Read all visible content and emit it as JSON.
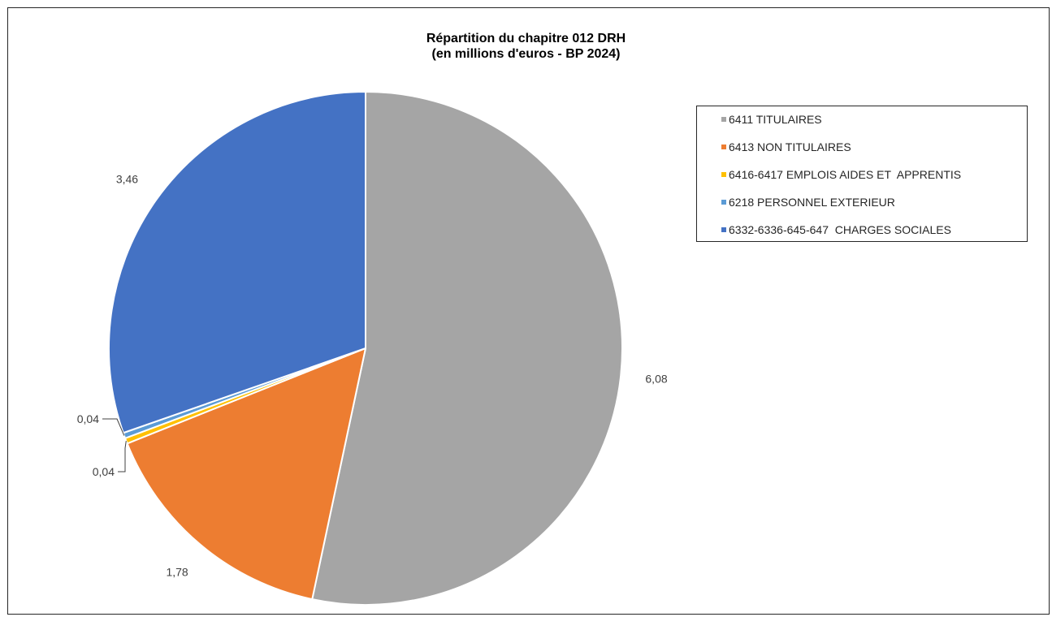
{
  "chart_data": {
    "type": "pie",
    "title_lines": [
      "Répartition du chapitre 012 DRH",
      "(en millions d'euros - BP 2024)"
    ],
    "categories": [
      "6411 TITULAIRES",
      "6413 NON TITULAIRES",
      "6416-6417 EMPLOIS AIDES ET  APPRENTIS",
      "6218 PERSONNEL EXTERIEUR",
      "6332-6336-645-647  CHARGES SOCIALES"
    ],
    "values": [
      6.08,
      1.78,
      0.04,
      0.04,
      3.46
    ],
    "value_labels": [
      "6,08",
      "1,78",
      "0,04",
      "0,04",
      "3,46"
    ],
    "colors": [
      "#A5A5A5",
      "#ED7D31",
      "#FFC000",
      "#5B9BD5",
      "#4472C4"
    ],
    "start_angle_deg": 0,
    "direction": "clockwise",
    "legend_position": "right"
  }
}
